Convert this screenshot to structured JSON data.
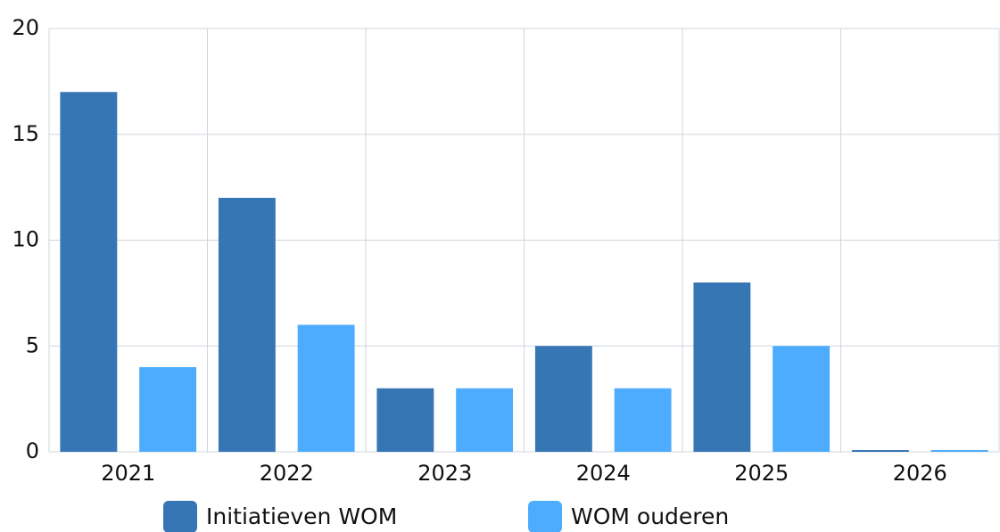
{
  "chart_data": {
    "type": "bar",
    "categories": [
      "2021",
      "2022",
      "2023",
      "2024",
      "2025",
      "2026"
    ],
    "series": [
      {
        "name": "Initiatieven WOM",
        "color": "#3776b4",
        "values": [
          17,
          12,
          3,
          5,
          8,
          0
        ]
      },
      {
        "name": "WOM ouderen",
        "color": "#4dacfe",
        "values": [
          4,
          6,
          3,
          3,
          5,
          0
        ]
      }
    ],
    "ylim": [
      0,
      20
    ],
    "yticks": [
      0,
      5,
      10,
      15,
      20
    ],
    "grid": true,
    "legend": "bottom"
  }
}
